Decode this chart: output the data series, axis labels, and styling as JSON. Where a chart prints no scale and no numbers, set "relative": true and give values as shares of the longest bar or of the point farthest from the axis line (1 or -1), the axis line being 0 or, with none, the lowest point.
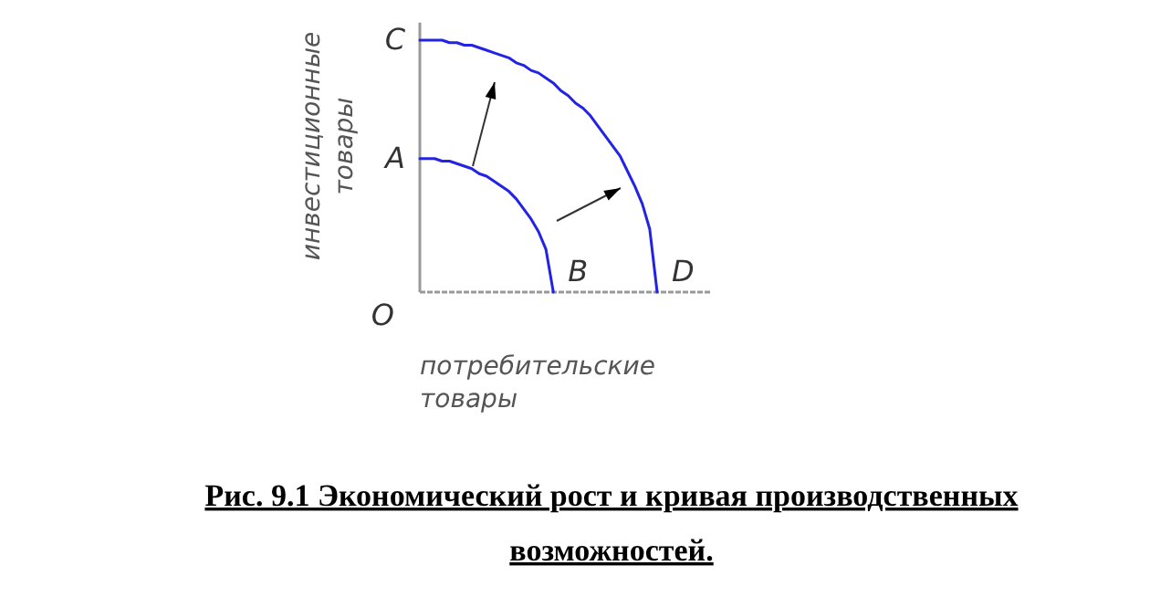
{
  "chart_data": {
    "type": "line",
    "relative": true,
    "title": "Рис. 9.1 Экономический рост и кривая производственных возможностей.",
    "xlabel": "потребительские товары",
    "ylabel": "инвестиционные товары",
    "line_style": "solid",
    "categories": [
      null,
      null,
      null,
      null,
      null,
      null,
      null,
      null,
      null,
      null,
      null,
      null,
      null,
      null,
      null,
      null,
      null,
      null,
      null,
      null,
      null,
      null,
      null,
      null,
      null,
      null,
      null,
      null,
      null,
      null,
      null,
      null,
      null
    ],
    "series": [
      {
        "color": "#2323e6",
        "values": [
          0.53,
          0.53,
          0.53,
          0.52,
          0.52,
          0.51,
          0.5,
          0.49,
          0.47,
          0.46,
          0.44,
          0.42,
          0.4,
          0.37,
          0.33,
          0.29,
          0.24,
          0.17,
          0,
          null,
          null,
          null,
          null,
          null,
          null,
          null,
          null,
          null,
          null,
          null,
          null,
          null,
          null
        ]
      },
      {
        "color": "#2323e6",
        "values": [
          1,
          1,
          1,
          1,
          0.99,
          0.99,
          0.98,
          0.98,
          0.97,
          0.96,
          0.95,
          0.94,
          0.93,
          0.91,
          0.9,
          0.88,
          0.87,
          0.85,
          0.83,
          0.8,
          0.78,
          0.75,
          0.73,
          0.7,
          0.66,
          0.62,
          0.58,
          0.54,
          0.48,
          0.42,
          0.35,
          0.25,
          0
        ]
      }
    ],
    "annotations": [
      "O",
      "A",
      "B",
      "C",
      "D"
    ]
  }
}
